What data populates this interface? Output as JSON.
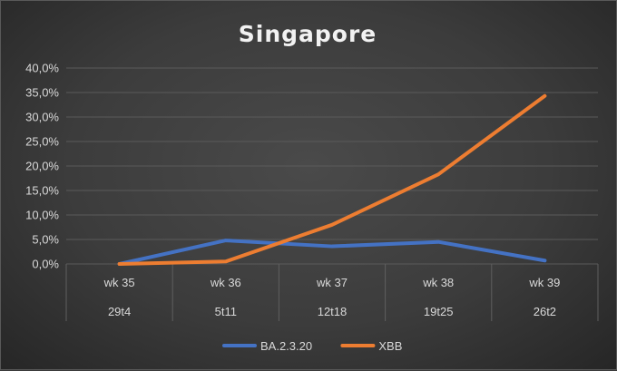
{
  "chart_data": {
    "type": "line",
    "title": "Singapore",
    "categories": [
      "wk 35",
      "wk 36",
      "wk 37",
      "wk 38",
      "wk 39"
    ],
    "sub_categories": [
      "29t4",
      "5t11",
      "12t18",
      "19t25",
      "26t2"
    ],
    "y_ticks": [
      "0,0%",
      "5,0%",
      "10,0%",
      "15,0%",
      "20,0%",
      "25,0%",
      "30,0%",
      "35,0%",
      "40,0%"
    ],
    "ylim": [
      0,
      40
    ],
    "grid": true,
    "legend_position": "bottom",
    "series": [
      {
        "name": "BA.2.3.20",
        "color": "#4472c4",
        "values": [
          0.0,
          4.8,
          3.6,
          4.5,
          0.7
        ]
      },
      {
        "name": "XBB",
        "color": "#ed7d31",
        "values": [
          0.0,
          0.5,
          8.0,
          18.3,
          34.3
        ]
      }
    ]
  }
}
